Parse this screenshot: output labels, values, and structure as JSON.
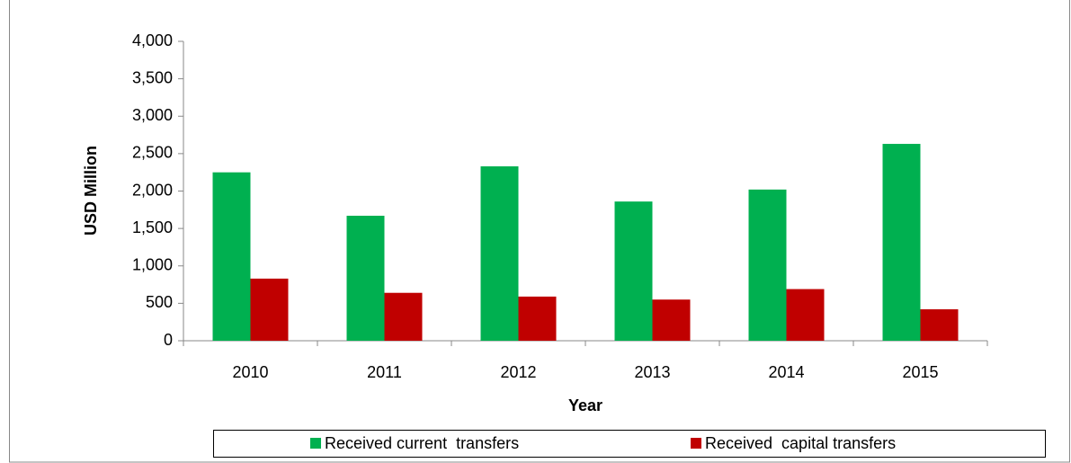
{
  "chart_data": {
    "type": "bar",
    "categories": [
      "2010",
      "2011",
      "2012",
      "2013",
      "2014",
      "2015"
    ],
    "series": [
      {
        "name": "Received current  transfers",
        "color": "#00b050",
        "values": [
          2250,
          1670,
          2330,
          1860,
          2020,
          2630
        ]
      },
      {
        "name": "Received  capital transfers",
        "color": "#c00000",
        "values": [
          830,
          640,
          590,
          550,
          690,
          420
        ]
      }
    ],
    "ylim": [
      0,
      4000
    ],
    "yticks": [
      0,
      500,
      {
        "value": 1000,
        "label": "1,000"
      },
      {
        "value": 1500,
        "label": "1,500"
      },
      {
        "value": 2000,
        "label": "2,000"
      },
      {
        "value": 2500,
        "label": "2,500"
      },
      {
        "value": 3000,
        "label": "3,000"
      },
      {
        "value": 3500,
        "label": "3,500"
      },
      {
        "value": 4000,
        "label": "4,000"
      }
    ],
    "xlabel": "Year",
    "ylabel": "USD Million",
    "grid": false,
    "legend": "bottom"
  }
}
